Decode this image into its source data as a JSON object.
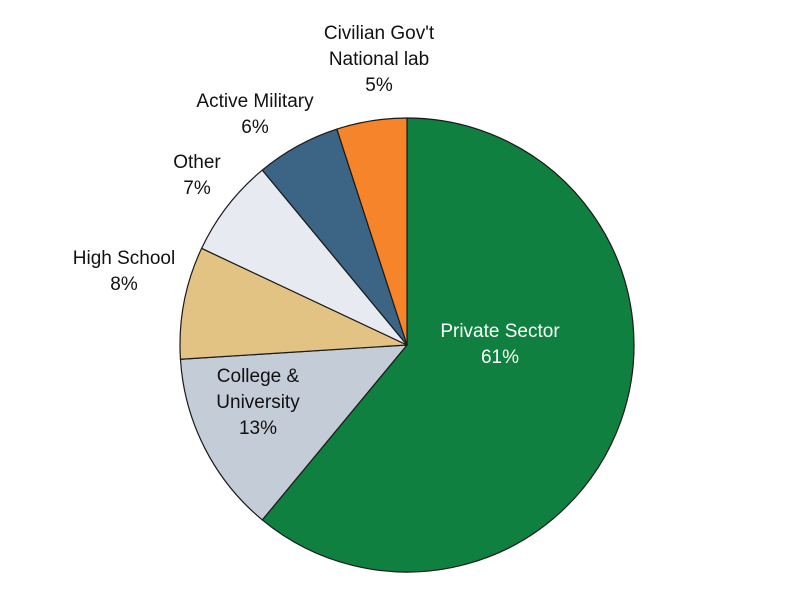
{
  "chart_data": {
    "type": "pie",
    "title": "",
    "start_angle_deg": 0,
    "direction": "clockwise",
    "slices": [
      {
        "label_lines": [
          "Private Sector",
          "61%"
        ],
        "value": 61,
        "color": "#108040",
        "label_style": "inverse"
      },
      {
        "label_lines": [
          "College &",
          "University",
          "13%"
        ],
        "value": 13,
        "color": "#c4ccd7",
        "label_style": "normal"
      },
      {
        "label_lines": [
          "High School",
          "8%"
        ],
        "value": 8,
        "color": "#e3c384",
        "label_style": "normal"
      },
      {
        "label_lines": [
          "Other",
          "7%"
        ],
        "value": 7,
        "color": "#e7eaf0",
        "label_style": "normal"
      },
      {
        "label_lines": [
          "Active Military",
          "6%"
        ],
        "value": 6,
        "color": "#3c6484",
        "label_style": "normal"
      },
      {
        "label_lines": [
          "Civilian Gov't",
          "National lab",
          "5%"
        ],
        "value": 5,
        "color": "#f5842a",
        "label_style": "normal"
      }
    ]
  }
}
